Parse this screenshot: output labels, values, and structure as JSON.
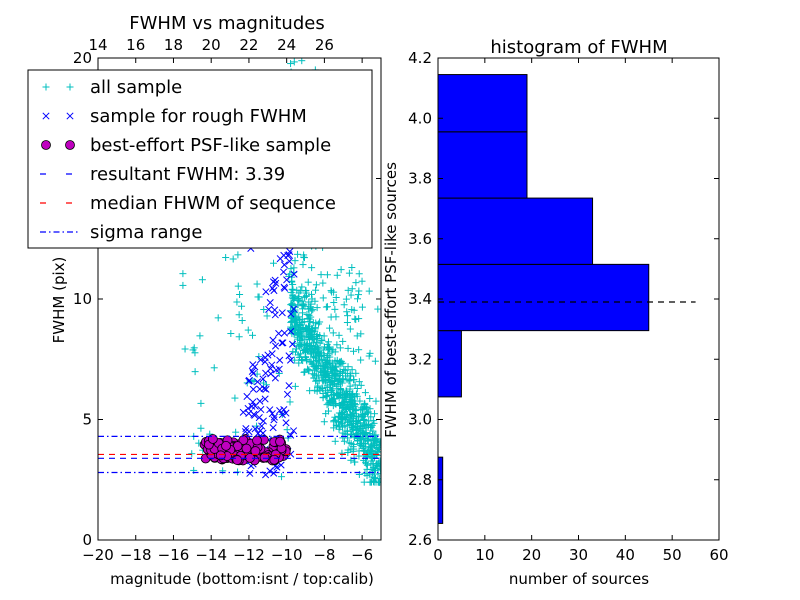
{
  "chart_data": [
    {
      "type": "scatter",
      "title": "FWHM vs magnitudes",
      "xlabel": "magnitude (bottom:isnt / top:calib)",
      "ylabel": "FWHM (pix)",
      "xlim": [
        -20,
        -5
      ],
      "ylim": [
        0,
        20
      ],
      "x_ticks": [
        -20,
        -18,
        -16,
        -14,
        -12,
        -10,
        -8,
        -6
      ],
      "x_tick_labels": [
        "−20",
        "−18",
        "−16",
        "−14",
        "−12",
        "−10",
        "−8",
        "−6"
      ],
      "y_ticks": [
        0,
        5,
        10,
        15,
        20
      ],
      "y_tick_labels": [
        "0",
        "5",
        "10",
        "15",
        "20"
      ],
      "top_ticks": [
        14,
        16,
        18,
        20,
        22,
        24,
        26
      ],
      "top_tick_labels": [
        "14",
        "16",
        "18",
        "20",
        "22",
        "24",
        "26"
      ],
      "top_axis_offset": 34,
      "series": [
        {
          "name": "all sample",
          "marker": "plus",
          "color": "#00bfbf"
        },
        {
          "name": "sample for rough FWHM",
          "marker": "x",
          "color": "#0000ff"
        },
        {
          "name": "best-effort PSF-like sample",
          "marker": "circle",
          "color": "#bf00bf"
        }
      ],
      "hlines": [
        {
          "name": "resultant FWHM: 3.39",
          "y": 3.39,
          "style": "dashed",
          "color": "#0000ff"
        },
        {
          "name": "median FHWM of sequence",
          "y": 3.55,
          "style": "dashed",
          "color": "#ff0000"
        },
        {
          "name": "sigma range",
          "y": 4.3,
          "style": "dashdot",
          "color": "#0000ff"
        },
        {
          "name": "sigma range",
          "y": 2.8,
          "style": "dashdot",
          "color": "#0000ff"
        }
      ],
      "legend": {
        "position": "upper-left",
        "entries": [
          "all sample",
          "sample for rough FWHM",
          "best-effort PSF-like sample",
          "resultant FWHM: 3.39",
          "median FHWM of sequence",
          "sigma range"
        ]
      }
    },
    {
      "type": "bar",
      "orientation": "horizontal",
      "title": "histogram of FWHM",
      "xlabel": "number of sources",
      "ylabel": "FWHM of best-effort PSF-like sources",
      "xlim": [
        0,
        60
      ],
      "ylim": [
        2.6,
        4.2
      ],
      "x_ticks": [
        0,
        10,
        20,
        30,
        40,
        50,
        60
      ],
      "x_tick_labels": [
        "0",
        "10",
        "20",
        "30",
        "40",
        "50",
        "60"
      ],
      "y_ticks": [
        2.6,
        2.8,
        3.0,
        3.2,
        3.4,
        3.6,
        3.8,
        4.0,
        4.2
      ],
      "y_tick_labels": [
        "2.6",
        "2.8",
        "3.0",
        "3.2",
        "3.4",
        "3.6",
        "3.8",
        "4.0",
        "4.2"
      ],
      "bars": [
        {
          "y0": 2.655,
          "y1": 2.875,
          "count": 1
        },
        {
          "y0": 3.075,
          "y1": 3.295,
          "count": 5
        },
        {
          "y0": 3.295,
          "y1": 3.515,
          "count": 45
        },
        {
          "y0": 3.515,
          "y1": 3.735,
          "count": 33
        },
        {
          "y0": 3.735,
          "y1": 3.955,
          "count": 19
        },
        {
          "y0": 3.955,
          "y1": 4.145,
          "count": 19
        }
      ],
      "bar_color": "#0000ff",
      "reference_line": {
        "y": 3.39,
        "x_end": 55,
        "style": "dashed",
        "color": "#000000"
      }
    }
  ]
}
